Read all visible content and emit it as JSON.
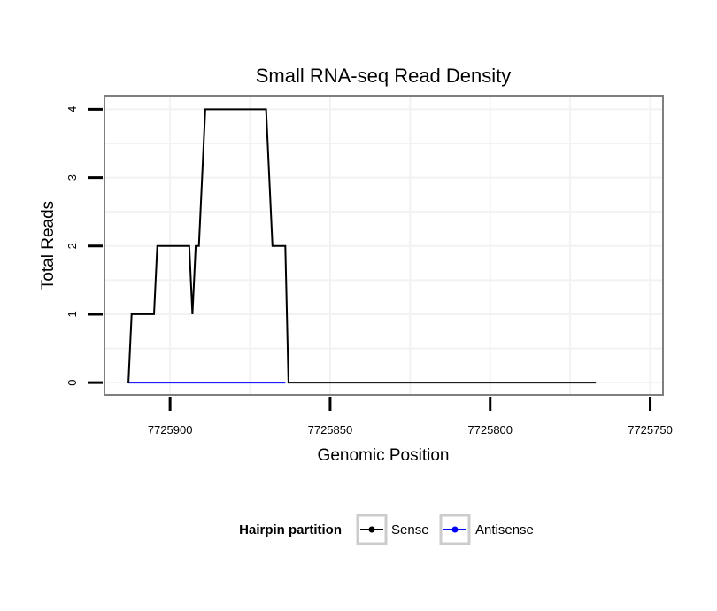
{
  "chart_data": {
    "type": "line",
    "title": "Small RNA-seq Read Density",
    "xlabel": "Genomic Position",
    "ylabel": "Total Reads",
    "x_reversed": true,
    "xlim": [
      7725920.5,
      7725746.0
    ],
    "ylim": [
      -0.18,
      4.2
    ],
    "x_ticks": [
      7725900,
      7725850,
      7725800,
      7725750
    ],
    "x_tick_labels": [
      "7725900",
      "7725850",
      "7725800",
      "7725750"
    ],
    "y_ticks": [
      0,
      1,
      2,
      3,
      4
    ],
    "y_tick_labels": [
      "0",
      "1",
      "2",
      "3",
      "4"
    ],
    "grid": true,
    "legend": {
      "title": "Hairpin partition",
      "position": "bottom",
      "entries": [
        {
          "label": "Sense",
          "color": "#000000"
        },
        {
          "label": "Antisense",
          "color": "#0000ff"
        }
      ]
    },
    "series": [
      {
        "name": "Sense",
        "color": "#000000",
        "x": [
          7725913,
          7725912,
          7725905,
          7725904,
          7725894,
          7725893,
          7725892,
          7725891,
          7725889,
          7725887,
          7725870,
          7725868,
          7725867,
          7725864,
          7725863,
          7725767
        ],
        "y": [
          0,
          1,
          1,
          2,
          2,
          1,
          2,
          2,
          4,
          4,
          4,
          2,
          2,
          2,
          0,
          0
        ]
      },
      {
        "name": "Antisense",
        "color": "#0000ff",
        "x": [
          7725913,
          7725864
        ],
        "y": [
          0,
          0
        ]
      }
    ]
  }
}
